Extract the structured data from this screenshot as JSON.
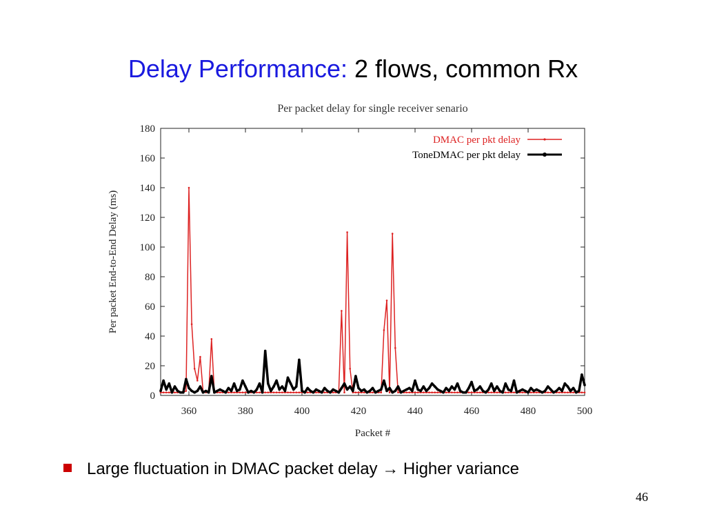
{
  "slide": {
    "title_colored": "Delay Performance:",
    "title_rest": "2 flows, common Rx",
    "bullet_text": "Large fluctuation in DMAC packet delay ",
    "arrow_glyph": "→",
    "bullet_text_2": "Higher variance",
    "page_number": "46",
    "colors": {
      "title_accent": "#1a1adf",
      "bullet": "#cc0000"
    }
  },
  "chart_data": {
    "type": "line",
    "title": "Per packet delay for single receiver senario",
    "xlabel": "Packet #",
    "ylabel": "Per packet End-to-End Delay (ms)",
    "xlim": [
      350,
      500
    ],
    "ylim": [
      0,
      180
    ],
    "xticks": [
      360,
      380,
      400,
      420,
      440,
      460,
      480,
      500
    ],
    "yticks": [
      0,
      20,
      40,
      60,
      80,
      100,
      120,
      140,
      160,
      180
    ],
    "grid": false,
    "legend_position": "top-right",
    "series": [
      {
        "name": "DMAC per pkt delay",
        "color": "#dd2222",
        "x": [
          350,
          351,
          352,
          353,
          354,
          355,
          356,
          357,
          358,
          359,
          360,
          361,
          362,
          363,
          364,
          365,
          366,
          367,
          368,
          369,
          370,
          371,
          372,
          373,
          374,
          375,
          376,
          377,
          378,
          379,
          380,
          381,
          382,
          383,
          384,
          385,
          386,
          387,
          388,
          389,
          390,
          391,
          392,
          393,
          394,
          395,
          396,
          397,
          398,
          399,
          400,
          401,
          402,
          403,
          404,
          405,
          406,
          407,
          408,
          409,
          410,
          411,
          412,
          413,
          414,
          415,
          416,
          417,
          418,
          419,
          420,
          421,
          422,
          423,
          424,
          425,
          426,
          427,
          428,
          429,
          430,
          431,
          432,
          433,
          434,
          435,
          436,
          437,
          438,
          439,
          440,
          441,
          442,
          443,
          444,
          445,
          446,
          447,
          448,
          449,
          450,
          451,
          452,
          453,
          454,
          455,
          456,
          457,
          458,
          459,
          460,
          461,
          462,
          463,
          464,
          465,
          466,
          467,
          468,
          469,
          470,
          471,
          472,
          473,
          474,
          475,
          476,
          477,
          478,
          479,
          480,
          481,
          482,
          483,
          484,
          485,
          486,
          487,
          488,
          489,
          490,
          491,
          492,
          493,
          494,
          495,
          496,
          497,
          498,
          499,
          500
        ],
        "values": [
          2,
          2,
          2,
          2,
          2,
          2,
          2,
          2,
          2,
          3,
          140,
          48,
          18,
          10,
          26,
          3,
          2,
          2,
          38,
          2,
          2,
          2,
          2,
          2,
          2,
          2,
          2,
          2,
          2,
          2,
          2,
          2,
          2,
          2,
          2,
          2,
          2,
          2,
          2,
          2,
          2,
          2,
          2,
          2,
          2,
          2,
          2,
          2,
          2,
          2,
          2,
          2,
          2,
          2,
          2,
          2,
          2,
          2,
          2,
          2,
          2,
          2,
          2,
          2,
          57,
          2,
          110,
          18,
          2,
          2,
          2,
          2,
          2,
          2,
          2,
          2,
          2,
          2,
          2,
          44,
          64,
          2,
          109,
          32,
          2,
          2,
          2,
          2,
          2,
          2,
          2,
          2,
          2,
          2,
          2,
          2,
          2,
          2,
          2,
          2,
          2,
          2,
          2,
          2,
          2,
          2,
          2,
          2,
          2,
          2,
          2,
          2,
          2,
          2,
          2,
          2,
          2,
          2,
          2,
          2,
          2,
          2,
          2,
          2,
          2,
          2,
          2,
          2,
          2,
          2,
          2,
          2,
          2,
          2,
          2,
          2,
          2,
          2,
          2,
          2,
          2,
          2,
          2,
          2,
          2,
          2,
          2,
          2,
          2,
          2,
          2
        ]
      },
      {
        "name": "ToneDMAC per pkt delay",
        "color": "#000000",
        "x": [
          350,
          351,
          352,
          353,
          354,
          355,
          356,
          357,
          358,
          359,
          360,
          361,
          362,
          363,
          364,
          365,
          366,
          367,
          368,
          369,
          370,
          371,
          372,
          373,
          374,
          375,
          376,
          377,
          378,
          379,
          380,
          381,
          382,
          383,
          384,
          385,
          386,
          387,
          388,
          389,
          390,
          391,
          392,
          393,
          394,
          395,
          396,
          397,
          398,
          399,
          400,
          401,
          402,
          403,
          404,
          405,
          406,
          407,
          408,
          409,
          410,
          411,
          412,
          413,
          414,
          415,
          416,
          417,
          418,
          419,
          420,
          421,
          422,
          423,
          424,
          425,
          426,
          427,
          428,
          429,
          430,
          431,
          432,
          433,
          434,
          435,
          436,
          437,
          438,
          439,
          440,
          441,
          442,
          443,
          444,
          445,
          446,
          447,
          448,
          449,
          450,
          451,
          452,
          453,
          454,
          455,
          456,
          457,
          458,
          459,
          460,
          461,
          462,
          463,
          464,
          465,
          466,
          467,
          468,
          469,
          470,
          471,
          472,
          473,
          474,
          475,
          476,
          477,
          478,
          479,
          480,
          481,
          482,
          483,
          484,
          485,
          486,
          487,
          488,
          489,
          490,
          491,
          492,
          493,
          494,
          495,
          496,
          497,
          498,
          499,
          500
        ],
        "values": [
          3,
          10,
          4,
          8,
          2,
          6,
          3,
          2,
          2,
          11,
          5,
          3,
          2,
          3,
          6,
          2,
          3,
          2,
          13,
          2,
          3,
          4,
          3,
          2,
          5,
          3,
          8,
          3,
          4,
          10,
          6,
          2,
          3,
          2,
          4,
          8,
          2,
          30,
          8,
          3,
          6,
          10,
          4,
          6,
          3,
          12,
          8,
          4,
          6,
          24,
          3,
          2,
          5,
          3,
          2,
          4,
          3,
          2,
          5,
          3,
          2,
          4,
          3,
          2,
          5,
          8,
          4,
          6,
          3,
          13,
          5,
          3,
          4,
          2,
          3,
          5,
          2,
          3,
          4,
          10,
          3,
          5,
          2,
          3,
          6,
          2,
          3,
          4,
          5,
          3,
          10,
          4,
          3,
          6,
          3,
          5,
          8,
          6,
          4,
          3,
          2,
          5,
          3,
          6,
          4,
          8,
          3,
          2,
          2,
          5,
          9,
          3,
          4,
          6,
          3,
          2,
          4,
          8,
          3,
          6,
          3,
          2,
          8,
          4,
          3,
          10,
          2,
          3,
          4,
          3,
          2,
          5,
          3,
          4,
          3,
          2,
          3,
          6,
          4,
          2,
          3,
          5,
          3,
          8,
          6,
          3,
          5,
          2,
          3,
          14,
          7
        ]
      }
    ]
  }
}
